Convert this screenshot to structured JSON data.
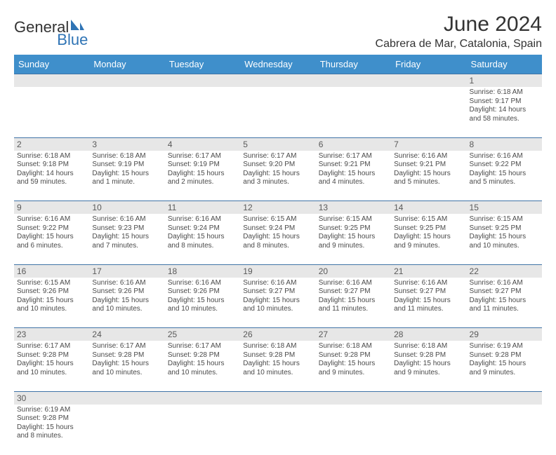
{
  "brand": {
    "part1": "General",
    "part2": "Blue",
    "color1": "#5a5a5a",
    "color2": "#2f74b5"
  },
  "title": "June 2024",
  "location": "Cabrera de Mar, Catalonia, Spain",
  "colors": {
    "header_bg": "#3f8fcb",
    "header_text": "#ffffff",
    "numrow_bg": "#e7e7e7",
    "row_border": "#3f73a6",
    "text": "#4a4a4a"
  },
  "weekdays": [
    "Sunday",
    "Monday",
    "Tuesday",
    "Wednesday",
    "Thursday",
    "Friday",
    "Saturday"
  ],
  "weeks": [
    [
      null,
      null,
      null,
      null,
      null,
      null,
      {
        "n": "1",
        "sr": "Sunrise: 6:18 AM",
        "ss": "Sunset: 9:17 PM",
        "d1": "Daylight: 14 hours",
        "d2": "and 58 minutes."
      }
    ],
    [
      {
        "n": "2",
        "sr": "Sunrise: 6:18 AM",
        "ss": "Sunset: 9:18 PM",
        "d1": "Daylight: 14 hours",
        "d2": "and 59 minutes."
      },
      {
        "n": "3",
        "sr": "Sunrise: 6:18 AM",
        "ss": "Sunset: 9:19 PM",
        "d1": "Daylight: 15 hours",
        "d2": "and 1 minute."
      },
      {
        "n": "4",
        "sr": "Sunrise: 6:17 AM",
        "ss": "Sunset: 9:19 PM",
        "d1": "Daylight: 15 hours",
        "d2": "and 2 minutes."
      },
      {
        "n": "5",
        "sr": "Sunrise: 6:17 AM",
        "ss": "Sunset: 9:20 PM",
        "d1": "Daylight: 15 hours",
        "d2": "and 3 minutes."
      },
      {
        "n": "6",
        "sr": "Sunrise: 6:17 AM",
        "ss": "Sunset: 9:21 PM",
        "d1": "Daylight: 15 hours",
        "d2": "and 4 minutes."
      },
      {
        "n": "7",
        "sr": "Sunrise: 6:16 AM",
        "ss": "Sunset: 9:21 PM",
        "d1": "Daylight: 15 hours",
        "d2": "and 5 minutes."
      },
      {
        "n": "8",
        "sr": "Sunrise: 6:16 AM",
        "ss": "Sunset: 9:22 PM",
        "d1": "Daylight: 15 hours",
        "d2": "and 5 minutes."
      }
    ],
    [
      {
        "n": "9",
        "sr": "Sunrise: 6:16 AM",
        "ss": "Sunset: 9:22 PM",
        "d1": "Daylight: 15 hours",
        "d2": "and 6 minutes."
      },
      {
        "n": "10",
        "sr": "Sunrise: 6:16 AM",
        "ss": "Sunset: 9:23 PM",
        "d1": "Daylight: 15 hours",
        "d2": "and 7 minutes."
      },
      {
        "n": "11",
        "sr": "Sunrise: 6:16 AM",
        "ss": "Sunset: 9:24 PM",
        "d1": "Daylight: 15 hours",
        "d2": "and 8 minutes."
      },
      {
        "n": "12",
        "sr": "Sunrise: 6:15 AM",
        "ss": "Sunset: 9:24 PM",
        "d1": "Daylight: 15 hours",
        "d2": "and 8 minutes."
      },
      {
        "n": "13",
        "sr": "Sunrise: 6:15 AM",
        "ss": "Sunset: 9:25 PM",
        "d1": "Daylight: 15 hours",
        "d2": "and 9 minutes."
      },
      {
        "n": "14",
        "sr": "Sunrise: 6:15 AM",
        "ss": "Sunset: 9:25 PM",
        "d1": "Daylight: 15 hours",
        "d2": "and 9 minutes."
      },
      {
        "n": "15",
        "sr": "Sunrise: 6:15 AM",
        "ss": "Sunset: 9:25 PM",
        "d1": "Daylight: 15 hours",
        "d2": "and 10 minutes."
      }
    ],
    [
      {
        "n": "16",
        "sr": "Sunrise: 6:15 AM",
        "ss": "Sunset: 9:26 PM",
        "d1": "Daylight: 15 hours",
        "d2": "and 10 minutes."
      },
      {
        "n": "17",
        "sr": "Sunrise: 6:16 AM",
        "ss": "Sunset: 9:26 PM",
        "d1": "Daylight: 15 hours",
        "d2": "and 10 minutes."
      },
      {
        "n": "18",
        "sr": "Sunrise: 6:16 AM",
        "ss": "Sunset: 9:26 PM",
        "d1": "Daylight: 15 hours",
        "d2": "and 10 minutes."
      },
      {
        "n": "19",
        "sr": "Sunrise: 6:16 AM",
        "ss": "Sunset: 9:27 PM",
        "d1": "Daylight: 15 hours",
        "d2": "and 10 minutes."
      },
      {
        "n": "20",
        "sr": "Sunrise: 6:16 AM",
        "ss": "Sunset: 9:27 PM",
        "d1": "Daylight: 15 hours",
        "d2": "and 11 minutes."
      },
      {
        "n": "21",
        "sr": "Sunrise: 6:16 AM",
        "ss": "Sunset: 9:27 PM",
        "d1": "Daylight: 15 hours",
        "d2": "and 11 minutes."
      },
      {
        "n": "22",
        "sr": "Sunrise: 6:16 AM",
        "ss": "Sunset: 9:27 PM",
        "d1": "Daylight: 15 hours",
        "d2": "and 11 minutes."
      }
    ],
    [
      {
        "n": "23",
        "sr": "Sunrise: 6:17 AM",
        "ss": "Sunset: 9:28 PM",
        "d1": "Daylight: 15 hours",
        "d2": "and 10 minutes."
      },
      {
        "n": "24",
        "sr": "Sunrise: 6:17 AM",
        "ss": "Sunset: 9:28 PM",
        "d1": "Daylight: 15 hours",
        "d2": "and 10 minutes."
      },
      {
        "n": "25",
        "sr": "Sunrise: 6:17 AM",
        "ss": "Sunset: 9:28 PM",
        "d1": "Daylight: 15 hours",
        "d2": "and 10 minutes."
      },
      {
        "n": "26",
        "sr": "Sunrise: 6:18 AM",
        "ss": "Sunset: 9:28 PM",
        "d1": "Daylight: 15 hours",
        "d2": "and 10 minutes."
      },
      {
        "n": "27",
        "sr": "Sunrise: 6:18 AM",
        "ss": "Sunset: 9:28 PM",
        "d1": "Daylight: 15 hours",
        "d2": "and 9 minutes."
      },
      {
        "n": "28",
        "sr": "Sunrise: 6:18 AM",
        "ss": "Sunset: 9:28 PM",
        "d1": "Daylight: 15 hours",
        "d2": "and 9 minutes."
      },
      {
        "n": "29",
        "sr": "Sunrise: 6:19 AM",
        "ss": "Sunset: 9:28 PM",
        "d1": "Daylight: 15 hours",
        "d2": "and 9 minutes."
      }
    ],
    [
      {
        "n": "30",
        "sr": "Sunrise: 6:19 AM",
        "ss": "Sunset: 9:28 PM",
        "d1": "Daylight: 15 hours",
        "d2": "and 8 minutes."
      },
      null,
      null,
      null,
      null,
      null,
      null
    ]
  ]
}
